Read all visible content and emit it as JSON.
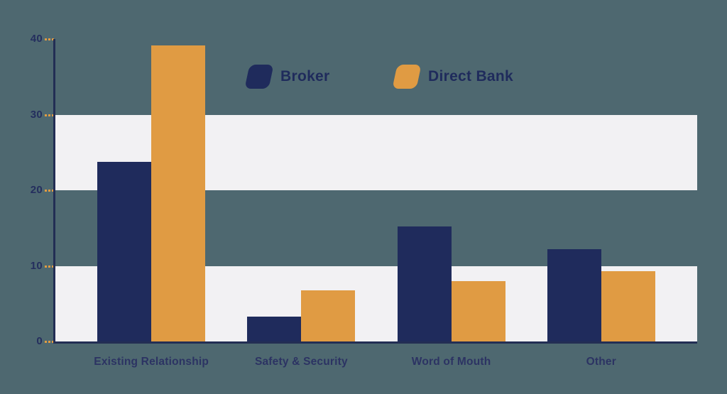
{
  "page": {
    "background": "#4e6870"
  },
  "legend": {
    "items": [
      {
        "label": "Broker",
        "color": "#1f2b5c"
      },
      {
        "label": "Direct Bank",
        "color": "#e09b43"
      }
    ],
    "text_color": "#1f2b5c"
  },
  "chart_data": {
    "type": "bar",
    "title": "",
    "xlabel": "",
    "ylabel": "",
    "categories": [
      "Existing Relationship",
      "Safety & Security",
      "Word of Mouth",
      "Other"
    ],
    "series": [
      {
        "name": "Broker",
        "color": "#1f2b5c",
        "values": [
          23.8,
          3.3,
          15.2,
          12.2
        ]
      },
      {
        "name": "Direct Bank",
        "color": "#e09b43",
        "values": [
          39.2,
          6.8,
          8.0,
          9.3
        ]
      }
    ],
    "ylim": [
      0,
      40
    ],
    "yticks": [
      0,
      10,
      20,
      30,
      40
    ],
    "ytick_labels": [
      "0",
      "10",
      "20",
      "30",
      "40"
    ],
    "grid": "alternating-horizontal-bands",
    "band_color": "#f2f1f3",
    "band_ranges": [
      [
        0,
        10
      ],
      [
        20,
        30
      ]
    ],
    "axis_color": "#232e54",
    "tick_color": "#e09b43",
    "axis_text_color": "#242e5e",
    "category_text_color": "#2c3363",
    "legend_position": "top-center"
  }
}
